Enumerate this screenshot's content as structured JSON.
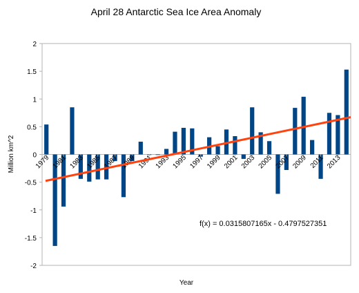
{
  "chart_data": {
    "type": "bar",
    "title": "April 28 Antarctic Sea Ice Area Anomaly",
    "xlabel": "Year",
    "ylabel": "Million km^2",
    "ylim": [
      -2,
      2
    ],
    "yticks": [
      "-2",
      "-1.5",
      "-1",
      "-0.5",
      "0",
      "0.5",
      "1",
      "1.5",
      "2"
    ],
    "x_tick_labels": [
      "1979",
      "1981",
      "1983",
      "1985",
      "1987",
      "1989",
      "1991",
      "1993",
      "1995",
      "1997",
      "1999",
      "2001",
      "2003",
      "2005",
      "2007",
      "2009",
      "2011",
      "2013"
    ],
    "categories": [
      "1979",
      "1980",
      "1981",
      "1982",
      "1983",
      "1984",
      "1985",
      "1986",
      "1987",
      "1988",
      "1989",
      "1990",
      "1991",
      "1992",
      "1993",
      "1994",
      "1995",
      "1996",
      "1997",
      "1998",
      "1999",
      "2000",
      "2001",
      "2002",
      "2003",
      "2004",
      "2005",
      "2006",
      "2007",
      "2008",
      "2009",
      "2010",
      "2011",
      "2012",
      "2013",
      "2014"
    ],
    "values": [
      0.54,
      -1.65,
      -0.94,
      0.85,
      -0.44,
      -0.49,
      -0.45,
      -0.45,
      -0.12,
      -0.77,
      -0.12,
      0.23,
      -0.01,
      0.0,
      0.1,
      0.41,
      0.48,
      0.47,
      -0.04,
      0.31,
      0.15,
      0.45,
      0.33,
      -0.08,
      0.85,
      0.4,
      0.24,
      -0.71,
      -0.28,
      0.84,
      1.04,
      0.26,
      -0.44,
      0.75,
      0.71,
      1.53
    ],
    "trendline": {
      "equation": "f(x) = 0.0315807165x - 0.4797527351",
      "slope": 0.0315807165,
      "intercept": -0.4797527351,
      "color": "#ff420e"
    },
    "bar_color": "#004586",
    "grid": false,
    "legend": "none"
  }
}
